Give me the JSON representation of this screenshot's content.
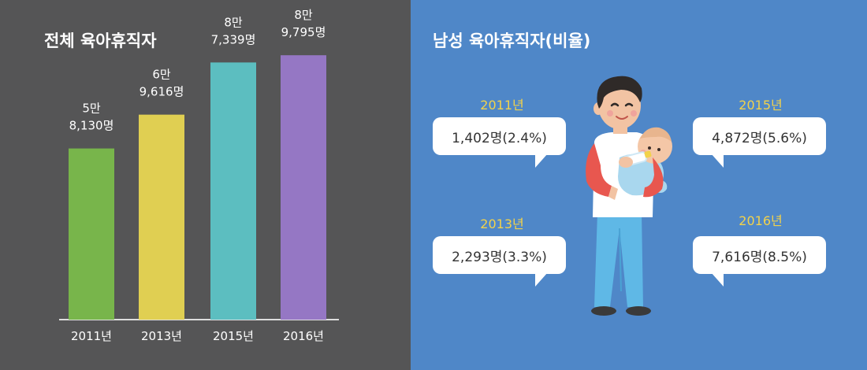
{
  "left_panel": {
    "title": "전체 육아휴직자"
  },
  "chart_data": {
    "type": "bar",
    "title": "전체 육아휴직자",
    "categories": [
      "2011년",
      "2013년",
      "2015년",
      "2016년"
    ],
    "values": [
      58130,
      69616,
      87339,
      89795
    ],
    "value_labels": [
      [
        "5만",
        "8,130명"
      ],
      [
        "6만",
        "9,616명"
      ],
      [
        "8만",
        "7,339명"
      ],
      [
        "8만",
        "9,795명"
      ]
    ],
    "colors": [
      "#78b54b",
      "#e0cf52",
      "#5cbec0",
      "#9577c4"
    ],
    "xlabel": "",
    "ylabel": "",
    "ylim": [
      0,
      100000
    ],
    "grid": false,
    "legend": "none"
  },
  "right_panel": {
    "title": "남성 육아휴직자(비율)",
    "items": [
      {
        "year": "2011년",
        "value": "1,402명(2.4%)"
      },
      {
        "year": "2015년",
        "value": "4,872명(5.6%)"
      },
      {
        "year": "2013년",
        "value": "2,293명(3.3%)"
      },
      {
        "year": "2016년",
        "value": "7,616명(8.5%)"
      }
    ],
    "colors": {
      "year": "#f2d24b",
      "bubble": "#ffffff",
      "bubble_text": "#333333"
    },
    "illustration": "father-holding-baby-icon"
  }
}
